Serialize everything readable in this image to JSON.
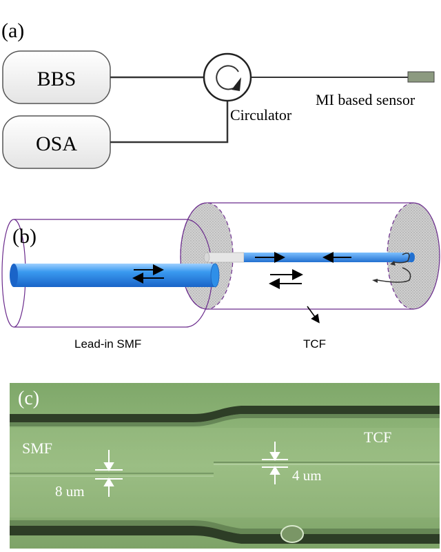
{
  "panel_a": {
    "label": "(a)",
    "source_label": "BBS",
    "analyzer_label": "OSA",
    "circulator_label": "Circulator",
    "sensor_label": "MI based sensor"
  },
  "panel_b": {
    "label": "(b)",
    "lead_in_label": "Lead-in SMF",
    "tcf_label": "TCF"
  },
  "panel_c": {
    "label": "(c)",
    "smf_label": "SMF",
    "tcf_label": "TCF",
    "core_smf": "8 um",
    "core_tcf": "4 um"
  },
  "colors": {
    "fiber_outline": "#6a2a8c",
    "core_blue": "#2f8fe8",
    "micrograph_green": "#8fb278",
    "sensor_box": "#8c9a80"
  }
}
